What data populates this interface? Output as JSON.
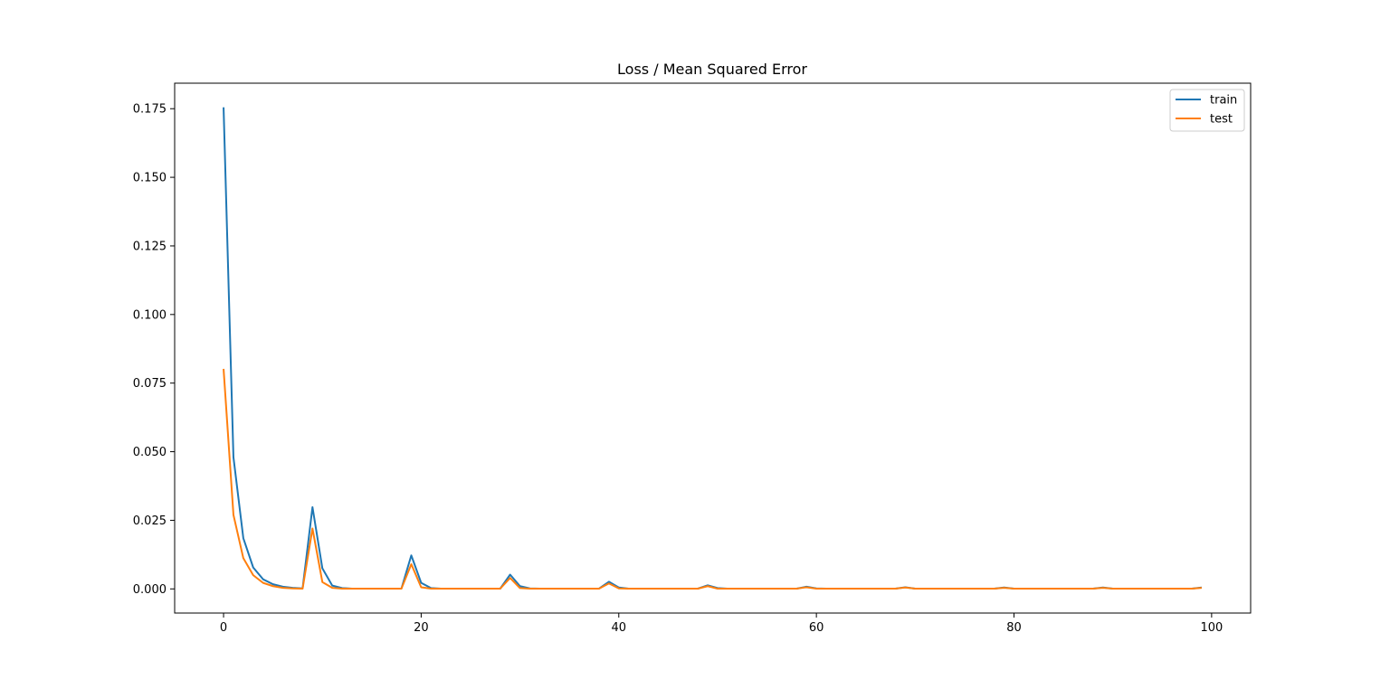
{
  "chart_data": {
    "type": "line",
    "title": "Loss / Mean Squared Error",
    "xlabel": "",
    "ylabel": "",
    "xlim": [
      -4.95,
      103.95
    ],
    "ylim": [
      -0.0088,
      0.1843
    ],
    "xticks": [
      0,
      20,
      40,
      60,
      80,
      100
    ],
    "xtick_labels": [
      "0",
      "20",
      "40",
      "60",
      "80",
      "100"
    ],
    "yticks": [
      0.0,
      0.025,
      0.05,
      0.075,
      0.1,
      0.125,
      0.15,
      0.175
    ],
    "ytick_labels": [
      "0.000",
      "0.025",
      "0.050",
      "0.075",
      "0.100",
      "0.125",
      "0.150",
      "0.175"
    ],
    "grid": false,
    "legend_position": "top-right",
    "series": [
      {
        "name": "train",
        "color": "#1f77b4",
        "x": [
          0,
          1,
          2,
          3,
          4,
          5,
          6,
          7,
          8,
          9,
          10,
          11,
          12,
          13,
          14,
          15,
          16,
          17,
          18,
          19,
          20,
          21,
          22,
          23,
          24,
          25,
          26,
          27,
          28,
          29,
          30,
          31,
          32,
          33,
          34,
          35,
          36,
          37,
          38,
          39,
          40,
          41,
          42,
          43,
          44,
          45,
          46,
          47,
          48,
          49,
          50,
          51,
          52,
          53,
          54,
          55,
          56,
          57,
          58,
          59,
          60,
          61,
          62,
          63,
          64,
          65,
          66,
          67,
          68,
          69,
          70,
          71,
          72,
          73,
          74,
          75,
          76,
          77,
          78,
          79,
          80,
          81,
          82,
          83,
          84,
          85,
          86,
          87,
          88,
          89,
          90,
          91,
          92,
          93,
          94,
          95,
          96,
          97,
          98,
          99
        ],
        "y": [
          0.1755,
          0.048,
          0.0185,
          0.0078,
          0.0035,
          0.0017,
          0.0008,
          0.0004,
          0.0002,
          0.0298,
          0.0075,
          0.0012,
          0.0003,
          0.0001,
          0.0001,
          0.0001,
          0.0001,
          0.0001,
          0.0001,
          0.0122,
          0.0022,
          0.0003,
          0.0001,
          0.0001,
          0.0001,
          0.0001,
          0.0001,
          0.0001,
          0.0001,
          0.0052,
          0.001,
          0.0002,
          0.0001,
          0.0001,
          0.0001,
          0.0001,
          0.0001,
          0.0001,
          0.0001,
          0.0026,
          0.0005,
          0.0001,
          0.0001,
          0.0001,
          0.0001,
          0.0001,
          0.0001,
          0.0001,
          0.0001,
          0.0013,
          0.0003,
          0.0001,
          0.0001,
          0.0001,
          0.0001,
          0.0001,
          0.0001,
          0.0001,
          0.0001,
          0.0008,
          0.0002,
          0.0001,
          0.0001,
          0.0001,
          0.0001,
          0.0001,
          0.0001,
          0.0001,
          0.0001,
          0.0006,
          0.0001,
          0.0001,
          0.0001,
          0.0001,
          0.0001,
          0.0001,
          0.0001,
          0.0001,
          0.0001,
          0.0005,
          0.0001,
          0.0001,
          0.0001,
          0.0001,
          0.0001,
          0.0001,
          0.0001,
          0.0001,
          0.0001,
          0.0005,
          0.0001,
          0.0001,
          0.0001,
          0.0001,
          0.0001,
          0.0001,
          0.0001,
          0.0001,
          0.0001,
          0.0005
        ]
      },
      {
        "name": "test",
        "color": "#ff7f0e",
        "x": [
          0,
          1,
          2,
          3,
          4,
          5,
          6,
          7,
          8,
          9,
          10,
          11,
          12,
          13,
          14,
          15,
          16,
          17,
          18,
          19,
          20,
          21,
          22,
          23,
          24,
          25,
          26,
          27,
          28,
          29,
          30,
          31,
          32,
          33,
          34,
          35,
          36,
          37,
          38,
          39,
          40,
          41,
          42,
          43,
          44,
          45,
          46,
          47,
          48,
          49,
          50,
          51,
          52,
          53,
          54,
          55,
          56,
          57,
          58,
          59,
          60,
          61,
          62,
          63,
          64,
          65,
          66,
          67,
          68,
          69,
          70,
          71,
          72,
          73,
          74,
          75,
          76,
          77,
          78,
          79,
          80,
          81,
          82,
          83,
          84,
          85,
          86,
          87,
          88,
          89,
          90,
          91,
          92,
          93,
          94,
          95,
          96,
          97,
          98,
          99
        ],
        "y": [
          0.0802,
          0.027,
          0.0112,
          0.005,
          0.0022,
          0.001,
          0.0004,
          0.0002,
          0.0001,
          0.022,
          0.0025,
          0.0004,
          0.0001,
          0.0001,
          0.0001,
          0.0001,
          0.0001,
          0.0001,
          0.0001,
          0.009,
          0.0006,
          0.0001,
          0.0001,
          0.0001,
          0.0001,
          0.0001,
          0.0001,
          0.0001,
          0.0001,
          0.004,
          0.0003,
          0.0001,
          0.0001,
          0.0001,
          0.0001,
          0.0001,
          0.0001,
          0.0001,
          0.0001,
          0.002,
          0.0002,
          0.0001,
          0.0001,
          0.0001,
          0.0001,
          0.0001,
          0.0001,
          0.0001,
          0.0001,
          0.001,
          0.0001,
          0.0001,
          0.0001,
          0.0001,
          0.0001,
          0.0001,
          0.0001,
          0.0001,
          0.0001,
          0.0006,
          0.0001,
          0.0001,
          0.0001,
          0.0001,
          0.0001,
          0.0001,
          0.0001,
          0.0001,
          0.0001,
          0.0005,
          0.0001,
          0.0001,
          0.0001,
          0.0001,
          0.0001,
          0.0001,
          0.0001,
          0.0001,
          0.0001,
          0.0004,
          0.0001,
          0.0001,
          0.0001,
          0.0001,
          0.0001,
          0.0001,
          0.0001,
          0.0001,
          0.0001,
          0.0004,
          0.0001,
          0.0001,
          0.0001,
          0.0001,
          0.0001,
          0.0001,
          0.0001,
          0.0001,
          0.0001,
          0.0004
        ]
      }
    ]
  }
}
